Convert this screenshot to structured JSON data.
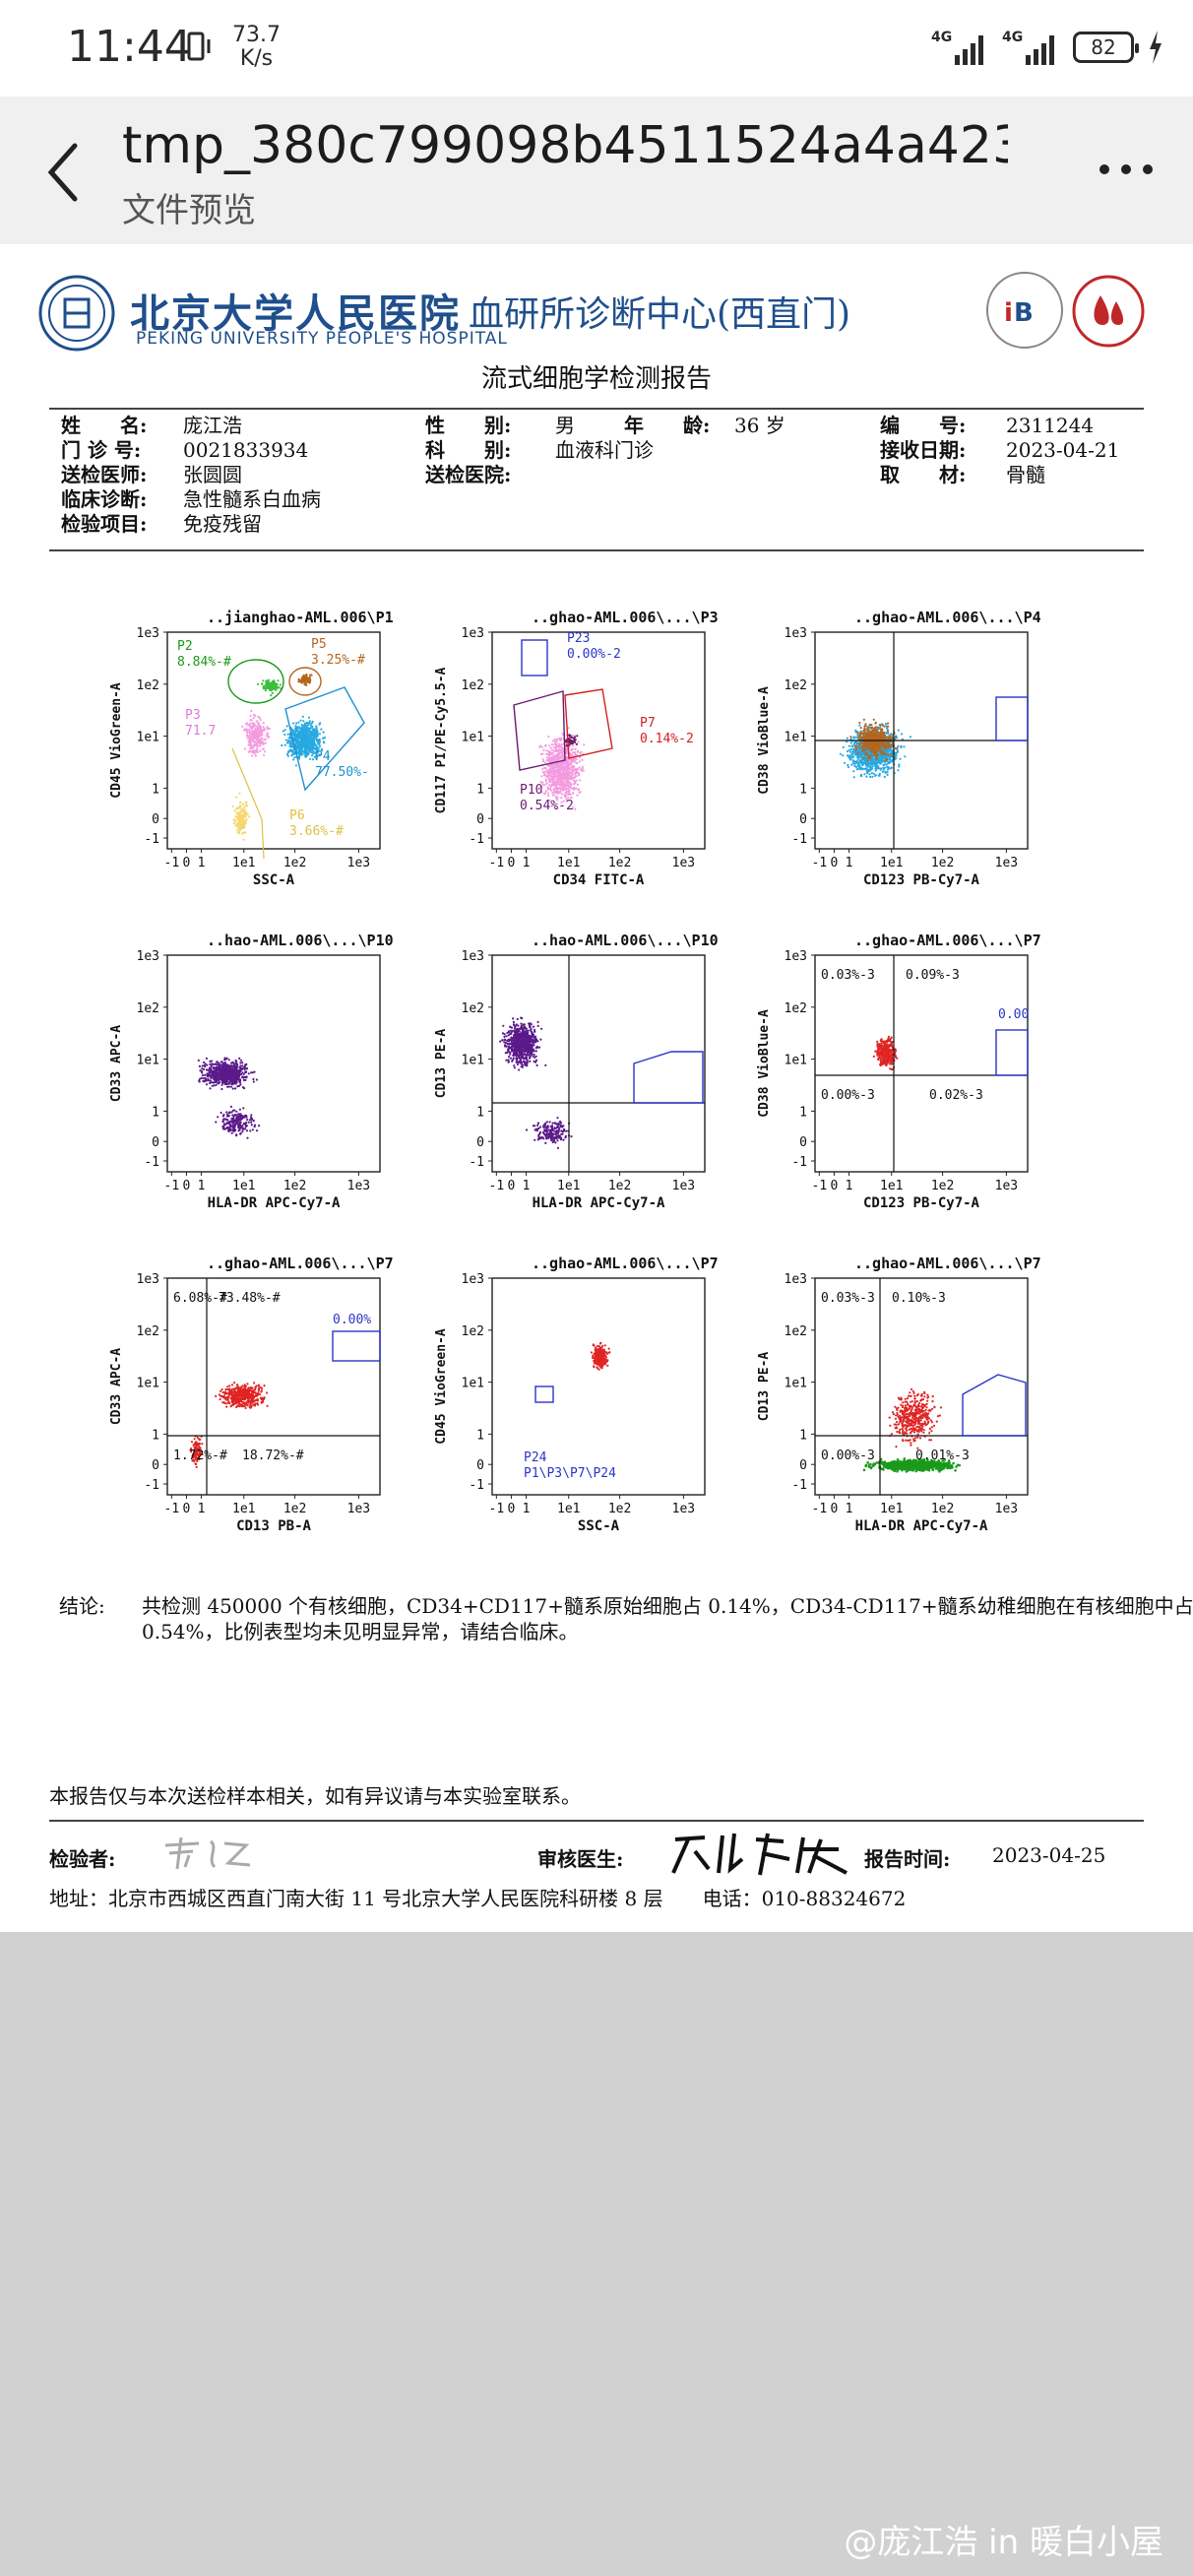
{
  "status": {
    "time": "11:44",
    "speed_value": "73.7",
    "speed_unit": "K/s",
    "sig1": "4G",
    "sig2": "4G",
    "battery": "82"
  },
  "appbar": {
    "title": "tmp_380c799098b4511524a4a423…",
    "subtitle": "文件预览"
  },
  "report": {
    "hospital_cn": "北京大学人民医院",
    "center_cn": "血研所诊断中心(西直门)",
    "hospital_en": "PEKING UNIVERSITY PEOPLE'S HOSPITAL",
    "title": "流式细胞学检测报告",
    "fields": {
      "name_label": "姓　　名:",
      "name": "庞江浩",
      "gender_label": "性　　别:",
      "gender": "男",
      "age_label": "年　　龄:",
      "age": "36 岁",
      "id_label": "编　　号:",
      "id": "2311244",
      "clinic_label": "门 诊 号:",
      "clinic": "0021833934",
      "dept_label": "科　　别:",
      "dept": "血液科门诊",
      "recv_label": "接收日期:",
      "recv": "2023-04-21",
      "doctor_label": "送检医师:",
      "doctor": "张圆圆",
      "hosp_label": "送检医院:",
      "hosp": "",
      "sample_label": "取　　材:",
      "sample": "骨髓",
      "diag_label": "临床诊断:",
      "diag": "急性髓系白血病",
      "item_label": "检验项目:",
      "item": "免疫残留"
    },
    "plots": [
      {
        "title": "..jianghao-AML.006\\P1",
        "xlabel": "SSC-A",
        "ylabel": "CD45 VioGreen-A",
        "gates": [
          {
            "name": "P2",
            "pct": "8.84%-#",
            "color": "#1a9a1a"
          },
          {
            "name": "P5",
            "pct": "3.25%-#",
            "color": "#b5651d"
          },
          {
            "name": "P3",
            "pct": "71.7",
            "color": "#e07ad8"
          },
          {
            "name": "P4",
            "pct": "77.50%-",
            "color": "#1e90d0"
          },
          {
            "name": "P6",
            "pct": "3.66%-#",
            "color": "#e0c040"
          }
        ]
      },
      {
        "title": "..ghao-AML.006\\...\\P3",
        "xlabel": "CD34 FITC-A",
        "ylabel": "CD117 PI/PE-Cy5.5-A",
        "gates": [
          {
            "name": "P23",
            "pct": "0.00%-2",
            "color": "#2a35c8"
          },
          {
            "name": "P7",
            "pct": "0.14%-2",
            "color": "#d42020"
          },
          {
            "name": "P10",
            "pct": "0.54%-2",
            "color": "#6a1a70"
          }
        ]
      },
      {
        "title": "..ghao-AML.006\\...\\P4",
        "xlabel": "CD123 PB-Cy7-A",
        "ylabel": "CD38 VioBlue-A",
        "gates": []
      },
      {
        "title": "..hao-AML.006\\...\\P10",
        "xlabel": "HLA-DR APC-Cy7-A",
        "ylabel": "CD33 APC-A",
        "gates": []
      },
      {
        "title": "..hao-AML.006\\...\\P10",
        "xlabel": "HLA-DR APC-Cy7-A",
        "ylabel": "CD13 PE-A",
        "gates": []
      },
      {
        "title": "..ghao-AML.006\\...\\P7",
        "xlabel": "CD123 PB-Cy7-A",
        "ylabel": "CD38 VioBlue-A",
        "quads": [
          "0.03%-3",
          "0.09%-3",
          "0.00%-3",
          "0.02%-3"
        ],
        "extra": "0.00"
      },
      {
        "title": "..ghao-AML.006\\...\\P7",
        "xlabel": "CD13 PB-A",
        "ylabel": "CD33 APC-A",
        "quads": [
          "6.08%-#",
          "73.48%-#",
          "1.72%-#",
          "18.72%-#"
        ],
        "extra": "0.00%"
      },
      {
        "title": "..ghao-AML.006\\...\\P7",
        "xlabel": "SSC-A",
        "ylabel": "CD45 VioGreen-A",
        "gates": [
          {
            "name": "P24",
            "pct": "P1\\P3\\P7\\P24",
            "color": "#2a35c8"
          }
        ]
      },
      {
        "title": "..ghao-AML.006\\...\\P7",
        "xlabel": "HLA-DR APC-Cy7-A",
        "ylabel": "CD13 PE-A",
        "quads": [
          "0.03%-3",
          "0.10%-3",
          "0.00%-3",
          "0.01%-3"
        ]
      }
    ],
    "ticks": {
      "y": [
        "1e3",
        "1e2",
        "1e1",
        "1",
        "0",
        "-1"
      ],
      "x": [
        "-1",
        "0",
        "1",
        "1e1",
        "1e2",
        "1e3"
      ]
    },
    "conclusion_label": "结论:",
    "conclusion": "共检测 450000 个有核细胞，CD34+CD117+髓系原始细胞占 0.14%，CD34-CD117+髓系幼稚细胞在有核细胞中占 0.54%，比例表型均未见明显异常，请结合临床。",
    "disclaimer": "本报告仅与本次送检样本相关，如有异议请与本实验室联系。",
    "tester_label": "检验者:",
    "reviewer_label": "审核医生:",
    "report_time_label": "报告时间:",
    "report_time": "2023-04-25",
    "address": "地址：北京市西城区西直门南大街 11 号北京大学人民医院科研楼 8 层　　电话：010-88324672"
  },
  "watermark": "@庞江浩 in 暖白小屋"
}
